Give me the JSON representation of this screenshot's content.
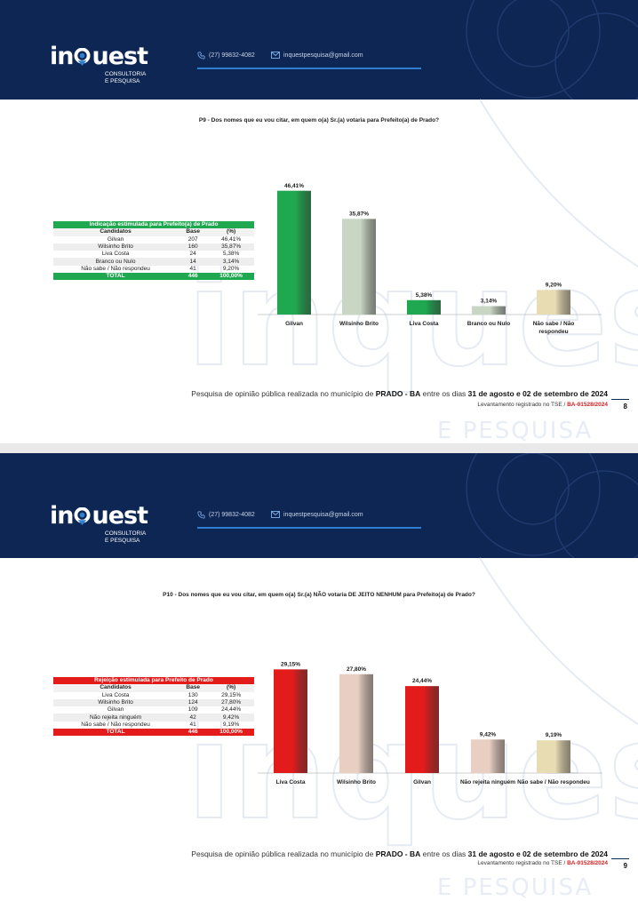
{
  "brand": {
    "logo_prefix": "in",
    "logo_suffix": "uest",
    "logo_sub_1": "CONSULTORIA",
    "logo_sub_2": "E PESQUISA",
    "phone": "(27) 99832-4082",
    "email": "inquestpesquisa@gmail.com",
    "watermark_word": "inquest",
    "watermark_sub": "E PESQUISA",
    "header_color": "#0d2654",
    "accent_color": "#2f7fd1"
  },
  "footer": {
    "text_1": "Pesquisa de opinião pública realizada no município de ",
    "city": "PRADO - BA",
    "text_2": " entre os dias ",
    "dates": "31 de agosto e 02 de setembro de 2024",
    "reg_label": "Levantamento registrado no TSE / ",
    "reg_code": "BA-01528/2024"
  },
  "slides": [
    {
      "page_number": "8",
      "question": "P9 - Dos nomes que eu vou citar, em quem o(a) Sr.(a) votaria para Prefeito(a) de Prado?",
      "table": {
        "title": "Indicação estimulada para Prefeito(a) de Prado",
        "title_color": "#1fa84f",
        "headers": [
          "Candidatos",
          "Base",
          "(%)"
        ],
        "rows": [
          [
            "Gilvan",
            "207",
            "46,41%"
          ],
          [
            "Wilsinho Brito",
            "160",
            "35,87%"
          ],
          [
            "Liva Costa",
            "24",
            "5,38%"
          ],
          [
            "Branco ou Nulo",
            "14",
            "3,14%"
          ],
          [
            "Não sabe / Não respondeu",
            "41",
            "9,20%"
          ]
        ],
        "total": [
          "TOTAL",
          "446",
          "100,00%"
        ]
      }
    },
    {
      "page_number": "9",
      "question": "P10 - Dos nomes que eu vou citar, em quem o(a) Sr.(a) NÃO votaria DE JEITO NENHUM para Prefeito(a) de Prado?",
      "table": {
        "title": "Rejeição estimulada para Prefeito de Prado",
        "title_color": "#e31b1b",
        "headers": [
          "Candidatos",
          "Base",
          "(%)"
        ],
        "rows": [
          [
            "Liva Costa",
            "130",
            "29,15%"
          ],
          [
            "Wilsinho Brito",
            "124",
            "27,80%"
          ],
          [
            "Gilvan",
            "109",
            "24,44%"
          ],
          [
            "Não rejeita ninguém",
            "42",
            "9,42%"
          ],
          [
            "Não sabe / Não respondeu",
            "41",
            "9,19%"
          ]
        ],
        "total": [
          "TOTAL",
          "446",
          "100,00%"
        ]
      }
    }
  ],
  "chart_data": [
    {
      "type": "bar",
      "categories": [
        "Gilvan",
        "Wilsinho Brito",
        "Liva Costa",
        "Branco ou Nulo",
        "Não sabe / Não respondeu"
      ],
      "values": [
        46.41,
        35.87,
        5.38,
        3.14,
        9.2
      ],
      "data_labels": [
        "46,41%",
        "35,87%",
        "5,38%",
        "3,14%",
        "9,20%"
      ],
      "colors": [
        "#1fa84f",
        "#c8d6c3",
        "#1fa84f",
        "#c8d6c3",
        "#e8dcb2"
      ],
      "ylim": [
        0,
        50
      ],
      "grid": false,
      "legend": "none"
    },
    {
      "type": "bar",
      "categories": [
        "Liva Costa",
        "Wilsinho Brito",
        "Gilvan",
        "Não rejeita ninguém",
        "Não sabe / Não respondeu"
      ],
      "values": [
        29.15,
        27.8,
        24.44,
        9.42,
        9.19
      ],
      "data_labels": [
        "29,15%",
        "27,80%",
        "24,44%",
        "9,42%",
        "9,19%"
      ],
      "colors": [
        "#e31b1b",
        "#e8cfc2",
        "#e31b1b",
        "#e8cfc2",
        "#e8dcb2"
      ],
      "ylim": [
        0,
        32
      ],
      "grid": false,
      "legend": "none"
    }
  ]
}
